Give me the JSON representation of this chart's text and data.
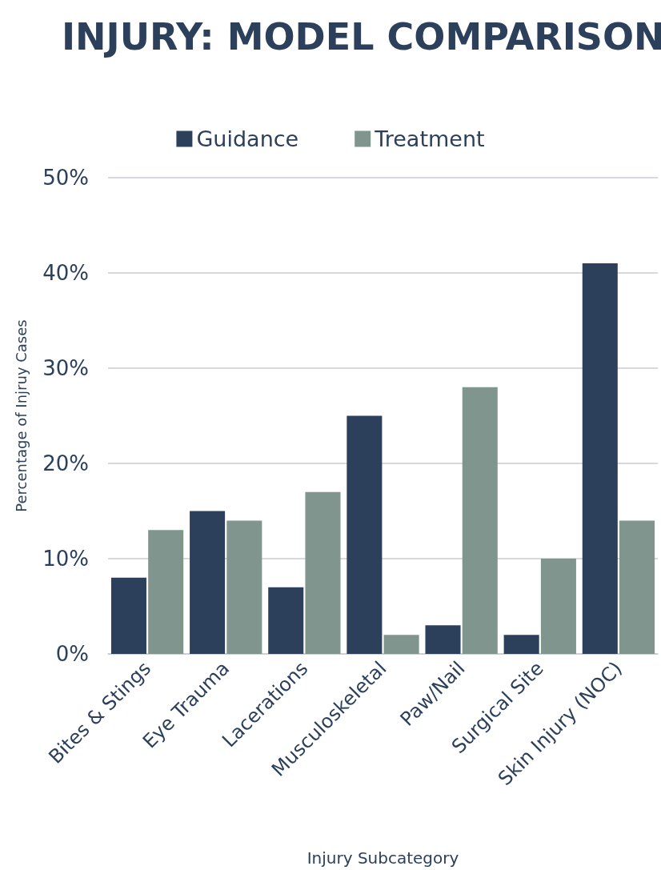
{
  "chart_data": {
    "type": "bar",
    "title": "INJURY: MODEL COMPARISON",
    "xlabel": "Injury Subcategory",
    "ylabel": "Percentage of Injruy Cases",
    "categories": [
      "Bites & Stings",
      "Eye Trauma",
      "Lacerations",
      "Musculoskeletal",
      "Paw/Nail",
      "Surgical Site",
      "Skin Injury (NOC)"
    ],
    "series": [
      {
        "name": "Guidance",
        "color": "#2c405c",
        "values": [
          8,
          15,
          7,
          25,
          3,
          2,
          41
        ]
      },
      {
        "name": "Treatment",
        "color": "#7f958d",
        "values": [
          13,
          14,
          17,
          2,
          28,
          10,
          14
        ]
      }
    ],
    "ylim": [
      0,
      50
    ],
    "yticks": [
      {
        "value": 0,
        "label": "0%"
      },
      {
        "value": 10,
        "label": "10%"
      },
      {
        "value": 20,
        "label": "20%"
      },
      {
        "value": 30,
        "label": "30%"
      },
      {
        "value": 40,
        "label": "40%"
      },
      {
        "value": 50,
        "label": "50%"
      }
    ],
    "grid": "y",
    "legend": "top"
  }
}
